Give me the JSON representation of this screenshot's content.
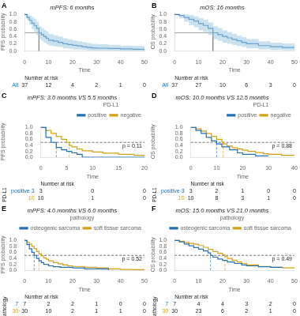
{
  "chart_data": [
    {
      "panel": "A",
      "type": "step",
      "title": "mPFS: 6 months",
      "xlabel": "Time",
      "ylabel": "PFS probability",
      "xlim": [
        0,
        50
      ],
      "ylim": [
        0,
        1.05
      ],
      "xticks": [
        0,
        10,
        20,
        30,
        40,
        50
      ],
      "yticks": [
        {
          "value": 0.0,
          "label": "0.0"
        },
        0.2,
        0.4,
        0.6,
        0.8,
        {
          "value": 1.0,
          "label": "1.0"
        }
      ],
      "grid": false,
      "reference_y": 0.5,
      "series": [
        {
          "color": "#2171b5",
          "ci_color": "#9ecae1",
          "median": 6,
          "x": [
            0,
            1,
            2,
            3,
            4,
            5,
            6,
            7,
            8,
            9,
            10,
            12,
            14,
            16,
            18,
            20,
            22,
            24,
            26,
            28,
            30,
            35,
            40,
            45,
            50
          ],
          "values": [
            1.0,
            0.92,
            0.84,
            0.76,
            0.7,
            0.62,
            0.5,
            0.45,
            0.4,
            0.35,
            0.3,
            0.27,
            0.24,
            0.2,
            0.18,
            0.16,
            0.14,
            0.12,
            0.1,
            0.09,
            0.08,
            0.07,
            0.06,
            0.05,
            0.05
          ],
          "ci_upper": [
            1.0,
            0.99,
            0.97,
            0.93,
            0.88,
            0.8,
            0.68,
            0.63,
            0.58,
            0.53,
            0.47,
            0.43,
            0.4,
            0.35,
            0.32,
            0.29,
            0.27,
            0.24,
            0.22,
            0.2,
            0.19,
            0.17,
            0.15,
            0.14,
            0.14
          ],
          "ci_lower": [
            1.0,
            0.85,
            0.72,
            0.6,
            0.52,
            0.44,
            0.33,
            0.28,
            0.23,
            0.19,
            0.15,
            0.13,
            0.11,
            0.08,
            0.07,
            0.05,
            0.04,
            0.03,
            0.02,
            0.01,
            0.01,
            0.01,
            0.0,
            0.0,
            0.0
          ]
        }
      ],
      "risk_table": {
        "title": "Number at risk",
        "x": [
          0,
          10,
          20,
          30,
          40,
          50
        ],
        "rows": [
          {
            "name": "All",
            "color": "#2171b5",
            "values": [
              37,
              12,
              4,
              2,
              1,
              0
            ]
          }
        ]
      }
    },
    {
      "panel": "B",
      "type": "step",
      "title": "mOS: 16 months",
      "xlabel": "Time",
      "ylabel": "OS probability",
      "xlim": [
        0,
        50
      ],
      "ylim": [
        0,
        1.05
      ],
      "xticks": [
        0,
        10,
        20,
        30,
        40,
        50
      ],
      "yticks": [
        {
          "value": 0.0,
          "label": "0.0"
        },
        0.2,
        0.4,
        0.6,
        0.8,
        {
          "value": 1.0,
          "label": "1.0"
        }
      ],
      "grid": false,
      "reference_y": 0.5,
      "series": [
        {
          "color": "#2171b5",
          "ci_color": "#9ecae1",
          "median": 16,
          "x": [
            0,
            2,
            4,
            6,
            8,
            10,
            12,
            14,
            16,
            18,
            20,
            22,
            24,
            26,
            28,
            30,
            35,
            40,
            45,
            50
          ],
          "values": [
            1.0,
            0.97,
            0.92,
            0.87,
            0.82,
            0.75,
            0.7,
            0.62,
            0.5,
            0.45,
            0.4,
            0.36,
            0.32,
            0.28,
            0.24,
            0.2,
            0.15,
            0.12,
            0.1,
            0.1
          ],
          "ci_upper": [
            1.0,
            1.0,
            1.0,
            0.98,
            0.95,
            0.9,
            0.85,
            0.78,
            0.68,
            0.63,
            0.57,
            0.52,
            0.47,
            0.42,
            0.38,
            0.33,
            0.27,
            0.23,
            0.21,
            0.21
          ],
          "ci_lower": [
            1.0,
            0.9,
            0.8,
            0.71,
            0.65,
            0.57,
            0.52,
            0.44,
            0.33,
            0.28,
            0.23,
            0.2,
            0.17,
            0.14,
            0.11,
            0.08,
            0.05,
            0.03,
            0.02,
            0.02
          ]
        }
      ],
      "risk_table": {
        "title": "Number at risk",
        "x": [
          0,
          10,
          20,
          30,
          40,
          50
        ],
        "rows": [
          {
            "name": "All",
            "color": "#2171b5",
            "values": [
              37,
              27,
              10,
              6,
              3,
              0
            ]
          }
        ]
      }
    },
    {
      "panel": "C",
      "type": "step",
      "title": "mPFS: 3.0 months VS 5.5 months",
      "xlabel": "Time",
      "ylabel": "PFS probability",
      "xlim": [
        0,
        20
      ],
      "ylim": [
        0,
        1.05
      ],
      "xticks": [
        0,
        5,
        10,
        15,
        20
      ],
      "yticks": [
        {
          "value": 0.0,
          "label": "0.0"
        },
        0.2,
        0.4,
        0.6,
        0.8,
        {
          "value": 1.0,
          "label": "1.0"
        }
      ],
      "grid": false,
      "reference_y": 0.5,
      "legend": "upper right",
      "legend_title": "PD-L1",
      "annotations": [
        "p = 0.11"
      ],
      "series": [
        {
          "name": "positive",
          "color": "#2171b5",
          "median": 3.0,
          "x": [
            0,
            1,
            2,
            3,
            4,
            5,
            6,
            7,
            8,
            10,
            15,
            20
          ],
          "values": [
            1.0,
            0.67,
            0.5,
            0.33,
            0.25,
            0.2,
            0.15,
            0.1,
            0.0,
            0.0,
            0.0,
            0.0
          ]
        },
        {
          "name": "negative",
          "color": "#d4a017",
          "median": 5.5,
          "x": [
            0,
            1,
            2,
            3,
            4,
            5,
            5.5,
            6,
            7,
            8,
            10,
            12,
            15,
            18,
            20
          ],
          "values": [
            1.0,
            0.9,
            0.8,
            0.7,
            0.6,
            0.5,
            0.4,
            0.35,
            0.28,
            0.22,
            0.18,
            0.14,
            0.1,
            0.07,
            0.07
          ]
        }
      ],
      "risk_table": {
        "title": "Number at risk",
        "label": "PD-L1",
        "x": [
          0,
          10,
          20
        ],
        "rows": [
          {
            "name": "positive 3",
            "color": "#2171b5",
            "values": [
              3,
              0,
              0
            ]
          },
          {
            "name": "10",
            "color": "#d4a017",
            "values": [
              10,
              1,
              0
            ]
          }
        ]
      }
    },
    {
      "panel": "D",
      "type": "step",
      "title": "mOS: 10.0 months VS 12.5 months",
      "xlabel": "Time",
      "ylabel": "OS probability",
      "xlim": [
        0,
        40
      ],
      "ylim": [
        0,
        1.05
      ],
      "xticks": [
        0,
        10,
        20,
        30,
        40
      ],
      "yticks": [
        {
          "value": 0.0,
          "label": "0.0"
        },
        0.2,
        0.4,
        0.6,
        0.8,
        {
          "value": 1.0,
          "label": "1.0"
        }
      ],
      "grid": false,
      "reference_y": 0.5,
      "legend": "upper right",
      "legend_title": "PD-L1",
      "annotations": [
        "p = 0.88"
      ],
      "series": [
        {
          "name": "positive",
          "color": "#2171b5",
          "median": 10.0,
          "x": [
            0,
            2,
            4,
            6,
            8,
            10,
            12,
            15,
            18,
            20,
            25,
            30
          ],
          "values": [
            1.0,
            0.9,
            0.8,
            0.67,
            0.55,
            0.45,
            0.35,
            0.25,
            0.15,
            0.1,
            0.05,
            0.05
          ]
        },
        {
          "name": "negative",
          "color": "#d4a017",
          "median": 12.5,
          "x": [
            0,
            2,
            4,
            6,
            8,
            10,
            12,
            12.5,
            14,
            16,
            18,
            20,
            22,
            25,
            28,
            30,
            35,
            40
          ],
          "values": [
            1.0,
            0.95,
            0.88,
            0.8,
            0.7,
            0.6,
            0.52,
            0.45,
            0.38,
            0.32,
            0.28,
            0.24,
            0.2,
            0.16,
            0.12,
            0.1,
            0.07,
            0.07
          ]
        }
      ],
      "risk_table": {
        "title": "Number at risk",
        "label": "PD-L1",
        "x": [
          0,
          10,
          20,
          30,
          40
        ],
        "rows": [
          {
            "name": "positive 3",
            "color": "#2171b5",
            "values": [
              3,
              2,
              1,
              0,
              0
            ]
          },
          {
            "name": "10",
            "color": "#d4a017",
            "values": [
              10,
              8,
              3,
              1,
              0
            ]
          }
        ]
      }
    },
    {
      "panel": "E",
      "type": "step",
      "title": "mPFS: 4.0 months VS 6.0 months",
      "xlabel": "Time",
      "ylabel": "PFS probability",
      "xlim": [
        0,
        50
      ],
      "ylim": [
        0,
        1.05
      ],
      "xticks": [
        0,
        10,
        20,
        30,
        40,
        50
      ],
      "yticks": [
        {
          "value": 0.0,
          "label": "0.0"
        },
        0.2,
        0.4,
        0.6,
        0.8,
        {
          "value": 1.0,
          "label": "1.0"
        }
      ],
      "grid": false,
      "reference_y": 0.5,
      "legend": "upper right",
      "legend_title": "pathology",
      "annotations": [
        "p = 0.52"
      ],
      "series": [
        {
          "name": "osteogenic sarcoma",
          "color": "#2171b5",
          "median": 4.0,
          "x": [
            0,
            1,
            2,
            3,
            4,
            5,
            6,
            7,
            8,
            10,
            12,
            15,
            20,
            25,
            30,
            35
          ],
          "values": [
            1.0,
            0.86,
            0.72,
            0.6,
            0.5,
            0.4,
            0.32,
            0.26,
            0.2,
            0.15,
            0.12,
            0.1,
            0.08,
            0.05,
            0.05,
            0.0
          ]
        },
        {
          "name": "soft tissue sarcoma",
          "color": "#d4a017",
          "median": 6.0,
          "x": [
            0,
            1,
            2,
            3,
            4,
            5,
            6,
            7,
            8,
            9,
            10,
            12,
            14,
            16,
            18,
            20,
            25,
            30,
            35,
            40,
            45,
            50
          ],
          "values": [
            1.0,
            0.93,
            0.87,
            0.8,
            0.73,
            0.63,
            0.55,
            0.48,
            0.42,
            0.37,
            0.32,
            0.26,
            0.22,
            0.18,
            0.15,
            0.13,
            0.1,
            0.08,
            0.05,
            0.03,
            0.02,
            0.02
          ]
        }
      ],
      "risk_table": {
        "title": "Number at risk",
        "label": "pathology",
        "x": [
          0,
          10,
          20,
          30,
          40,
          50
        ],
        "rows": [
          {
            "name": "7",
            "color": "#2171b5",
            "values": [
              7,
              2,
              2,
              1,
              0,
              0
            ]
          },
          {
            "name": "30",
            "color": "#d4a017",
            "values": [
              30,
              10,
              2,
              1,
              1,
              0
            ]
          }
        ]
      }
    },
    {
      "panel": "F",
      "type": "step",
      "title": "mOS: 15.0 months VS 21.0 months",
      "xlabel": "Time",
      "ylabel": "OS probability",
      "xlim": [
        0,
        50
      ],
      "ylim": [
        0,
        1.05
      ],
      "xticks": [
        0,
        10,
        20,
        30,
        40,
        50
      ],
      "yticks": [
        {
          "value": 0.0,
          "label": "0.0"
        },
        0.2,
        0.4,
        0.6,
        0.8,
        {
          "value": 1.0,
          "label": "1.0"
        }
      ],
      "grid": false,
      "reference_y": 0.5,
      "legend": "upper right",
      "legend_title": "pathology",
      "annotations": [
        "p = 0.49"
      ],
      "series": [
        {
          "name": "osteogenic sarcoma",
          "color": "#2171b5",
          "median": 15.0,
          "x": [
            0,
            2,
            4,
            6,
            8,
            10,
            12,
            14,
            15,
            16,
            18,
            20,
            22,
            25,
            28,
            30,
            35,
            40,
            45
          ],
          "values": [
            1.0,
            0.95,
            0.88,
            0.82,
            0.76,
            0.71,
            0.65,
            0.58,
            0.5,
            0.44,
            0.38,
            0.33,
            0.28,
            0.23,
            0.18,
            0.15,
            0.12,
            0.1,
            0.1
          ]
        },
        {
          "name": "soft tissue sarcoma",
          "color": "#d4a017",
          "median": 21.0,
          "x": [
            0,
            2,
            4,
            6,
            8,
            10,
            12,
            14,
            16,
            18,
            20,
            21,
            22,
            24,
            26,
            28,
            30,
            35,
            40,
            45,
            50
          ],
          "values": [
            1.0,
            0.97,
            0.93,
            0.9,
            0.87,
            0.83,
            0.77,
            0.7,
            0.63,
            0.57,
            0.52,
            0.46,
            0.4,
            0.34,
            0.28,
            0.23,
            0.18,
            0.13,
            0.1,
            0.08,
            0.08
          ]
        }
      ],
      "risk_table": {
        "title": "Number at risk",
        "label": "pathology",
        "x": [
          0,
          10,
          20,
          30,
          40,
          50
        ],
        "rows": [
          {
            "name": "7",
            "color": "#2171b5",
            "values": [
              7,
              4,
              4,
              3,
              2,
              0
            ]
          },
          {
            "name": "30",
            "color": "#d4a017",
            "values": [
              30,
              23,
              6,
              2,
              1,
              0
            ]
          }
        ]
      }
    }
  ]
}
